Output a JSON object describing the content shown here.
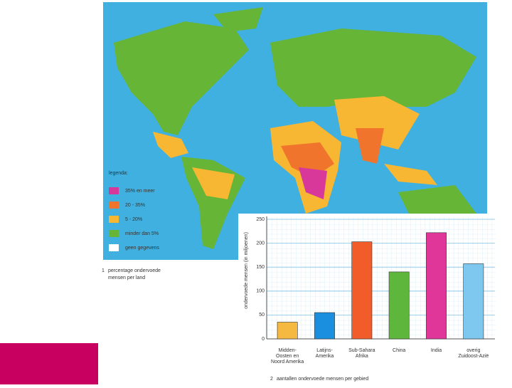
{
  "map": {
    "legend_title": "legenda:",
    "legend": [
      {
        "label": "35% en meer",
        "color": "#d9389b"
      },
      {
        "label": "20 - 35%",
        "color": "#f0742c"
      },
      {
        "label": "5 - 20%",
        "color": "#f7b733"
      },
      {
        "label": "minder dan 5%",
        "color": "#66b536"
      },
      {
        "label": "geen gegevens",
        "color": "#ffffff"
      }
    ],
    "caption_number": "1",
    "caption": [
      "percentage ondervoede",
      "mensen per land"
    ]
  },
  "chart_data": {
    "type": "bar",
    "y_label": "ondervoede mensen (in miljoenen)",
    "caption_number": "2",
    "caption": "aantallen ondervoede mensen per gebied",
    "categories": [
      "Midden-\nOosten en\nNoord Amerika",
      "Latijns-\nAmerika",
      "Sub-Sahara\nAfrika",
      "China",
      "India",
      "overig\nZuidoost-Azië"
    ],
    "values": [
      35,
      55,
      203,
      140,
      222,
      157
    ],
    "colors": [
      "#f5b942",
      "#1a8fe0",
      "#f25c2a",
      "#5fb63c",
      "#e0369a",
      "#7ec8f0"
    ],
    "ylim": [
      0,
      250
    ],
    "yticks": [
      0,
      50,
      100,
      150,
      200,
      250
    ],
    "grid": true
  }
}
